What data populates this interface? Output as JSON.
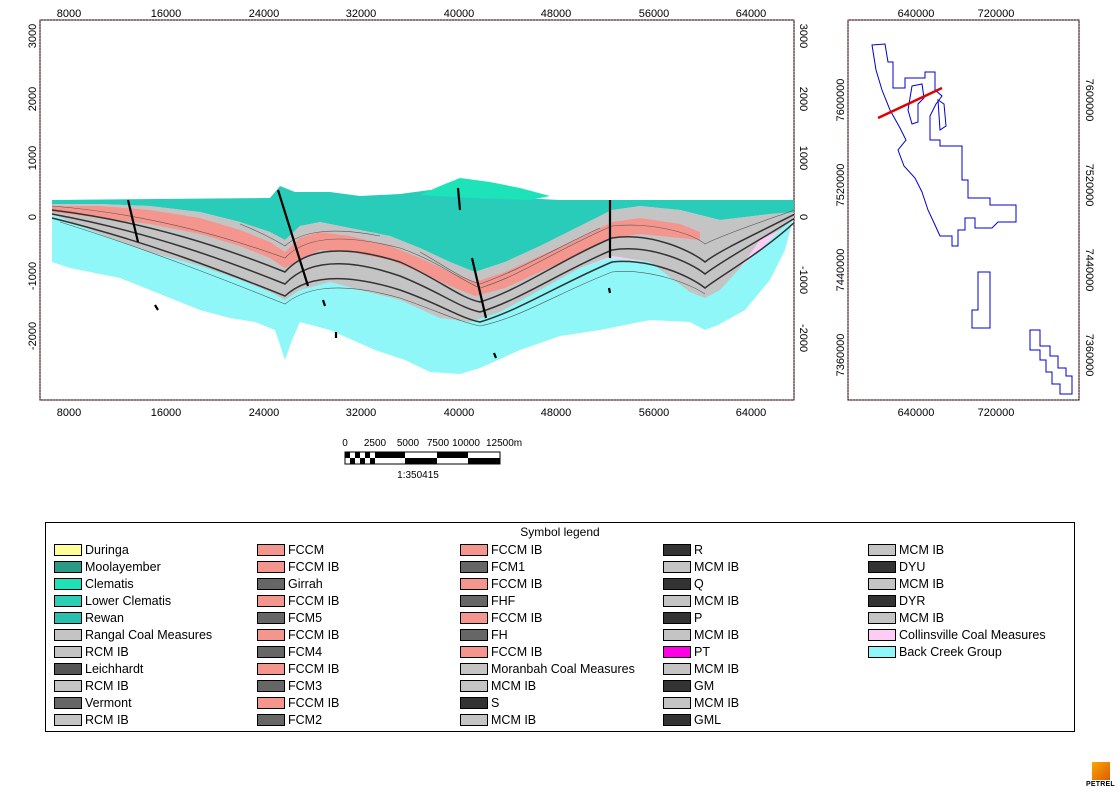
{
  "section": {
    "x_ticks": [
      "8000",
      "16000",
      "24000",
      "32000",
      "40000",
      "48000",
      "56000",
      "64000"
    ],
    "y_left_ticks": [
      "3000",
      "2000",
      "1000",
      "0",
      "-1000",
      "-2000"
    ],
    "y_right_ticks": [
      "3000",
      "2000",
      "1000",
      "0",
      "-1000",
      "-2000"
    ]
  },
  "locator": {
    "x_ticks": [
      "640000",
      "720000"
    ],
    "y_ticks": [
      "7600000",
      "7520000",
      "7440000",
      "7360000"
    ]
  },
  "scalebar": {
    "labels": [
      "0",
      "2500",
      "5000",
      "7500",
      "10000",
      "12500m"
    ],
    "ratio": "1:350415"
  },
  "legend": {
    "title": "Symbol legend",
    "columns": [
      [
        {
          "label": "Duringa",
          "color": "#ffff9a"
        },
        {
          "label": "Moolayember",
          "color": "#2a9a87"
        },
        {
          "label": "Clematis",
          "color": "#1de3b9"
        },
        {
          "label": "Lower Clematis",
          "color": "#2ccfb4"
        },
        {
          "label": "Rewan",
          "color": "#25c0ae"
        },
        {
          "label": "Rangal Coal Measures",
          "color": "#c4c4c4"
        },
        {
          "label": "RCM IB",
          "color": "#c4c4c4"
        },
        {
          "label": "Leichhardt",
          "color": "#555555"
        },
        {
          "label": "RCM IB",
          "color": "#c4c4c4"
        },
        {
          "label": "Vermont",
          "color": "#666666"
        },
        {
          "label": "RCM IB",
          "color": "#c4c4c4"
        }
      ],
      [
        {
          "label": "FCCM",
          "color": "#f5968e"
        },
        {
          "label": "FCCM IB",
          "color": "#f5968e"
        },
        {
          "label": "Girrah",
          "color": "#666666"
        },
        {
          "label": "FCCM IB",
          "color": "#f5968e"
        },
        {
          "label": "FCM5",
          "color": "#666666"
        },
        {
          "label": "FCCM IB",
          "color": "#f5968e"
        },
        {
          "label": "FCM4",
          "color": "#666666"
        },
        {
          "label": "FCCM IB",
          "color": "#f5968e"
        },
        {
          "label": "FCM3",
          "color": "#666666"
        },
        {
          "label": "FCCM IB",
          "color": "#f5968e"
        },
        {
          "label": "FCM2",
          "color": "#666666"
        }
      ],
      [
        {
          "label": "FCCM IB",
          "color": "#f5968e"
        },
        {
          "label": "FCM1",
          "color": "#666666"
        },
        {
          "label": "FCCM IB",
          "color": "#f5968e"
        },
        {
          "label": "FHF",
          "color": "#666666"
        },
        {
          "label": "FCCM IB",
          "color": "#f5968e"
        },
        {
          "label": "FH",
          "color": "#666666"
        },
        {
          "label": "FCCM IB",
          "color": "#f5968e"
        },
        {
          "label": "Moranbah Coal Measures",
          "color": "#c4c4c4"
        },
        {
          "label": "MCM IB",
          "color": "#c4c4c4"
        },
        {
          "label": "S",
          "color": "#333333"
        },
        {
          "label": "MCM IB",
          "color": "#c4c4c4"
        }
      ],
      [
        {
          "label": "R",
          "color": "#333333"
        },
        {
          "label": "MCM IB",
          "color": "#c4c4c4"
        },
        {
          "label": "Q",
          "color": "#333333"
        },
        {
          "label": "MCM IB",
          "color": "#c4c4c4"
        },
        {
          "label": "P",
          "color": "#333333"
        },
        {
          "label": "MCM IB",
          "color": "#c4c4c4"
        },
        {
          "label": "PT",
          "color": "#ff00e6"
        },
        {
          "label": "MCM IB",
          "color": "#c4c4c4"
        },
        {
          "label": "GM",
          "color": "#333333"
        },
        {
          "label": "MCM IB",
          "color": "#c4c4c4"
        },
        {
          "label": "GML",
          "color": "#333333"
        }
      ],
      [
        {
          "label": "MCM IB",
          "color": "#c4c4c4"
        },
        {
          "label": "DYU",
          "color": "#333333"
        },
        {
          "label": "MCM IB",
          "color": "#c4c4c4"
        },
        {
          "label": "DYR",
          "color": "#333333"
        },
        {
          "label": "MCM IB",
          "color": "#c4c4c4"
        },
        {
          "label": "Collinsville Coal Measures",
          "color": "#ffccf5"
        },
        {
          "label": "Back Creek Group",
          "color": "#8ff7f7"
        }
      ]
    ]
  },
  "logo": {
    "text": "PETREL"
  }
}
